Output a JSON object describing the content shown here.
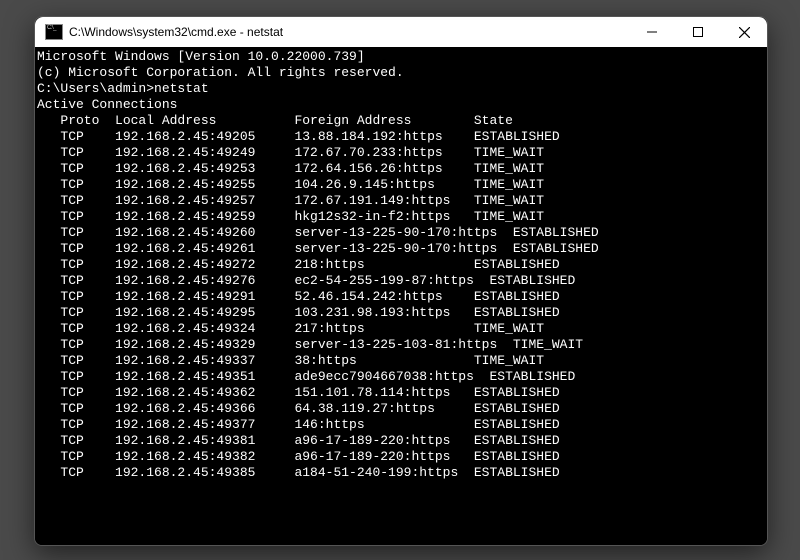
{
  "window": {
    "title": "C:\\Windows\\system32\\cmd.exe - netstat"
  },
  "header": {
    "version_line": "Microsoft Windows [Version 10.0.22000.739]",
    "copyright_line": "(c) Microsoft Corporation. All rights reserved."
  },
  "prompt": {
    "path": "C:\\Users\\admin>",
    "command": "netstat"
  },
  "section": {
    "title": "Active Connections",
    "col_proto": "Proto",
    "col_local": "Local Address",
    "col_foreign": "Foreign Address",
    "col_state": "State"
  },
  "layout": {
    "pad_proto": 3,
    "width_proto": 7,
    "width_local": 23,
    "width_foreign": 23,
    "header_pad_proto": 3,
    "header_width_proto": 7,
    "header_width_local": 23,
    "header_width_foreign": 23
  },
  "colors": {
    "window_bg": "#000000",
    "text": "#ffffff",
    "titlebar_bg": "#ffffff",
    "titlebar_text": "#000000",
    "desktop_bg": "#4a4a4a"
  },
  "connections": [
    {
      "proto": "TCP",
      "local": "192.168.2.45:49205",
      "foreign": "13.88.184.192:https",
      "state": "ESTABLISHED"
    },
    {
      "proto": "TCP",
      "local": "192.168.2.45:49249",
      "foreign": "172.67.70.233:https",
      "state": "TIME_WAIT"
    },
    {
      "proto": "TCP",
      "local": "192.168.2.45:49253",
      "foreign": "172.64.156.26:https",
      "state": "TIME_WAIT"
    },
    {
      "proto": "TCP",
      "local": "192.168.2.45:49255",
      "foreign": "104.26.9.145:https",
      "state": "TIME_WAIT"
    },
    {
      "proto": "TCP",
      "local": "192.168.2.45:49257",
      "foreign": "172.67.191.149:https",
      "state": "TIME_WAIT"
    },
    {
      "proto": "TCP",
      "local": "192.168.2.45:49259",
      "foreign": "hkg12s32-in-f2:https",
      "state": "TIME_WAIT"
    },
    {
      "proto": "TCP",
      "local": "192.168.2.45:49260",
      "foreign": "server-13-225-90-170:https",
      "state": "ESTABLISHED"
    },
    {
      "proto": "TCP",
      "local": "192.168.2.45:49261",
      "foreign": "server-13-225-90-170:https",
      "state": "ESTABLISHED"
    },
    {
      "proto": "TCP",
      "local": "192.168.2.45:49272",
      "foreign": "218:https",
      "state": "ESTABLISHED"
    },
    {
      "proto": "TCP",
      "local": "192.168.2.45:49276",
      "foreign": "ec2-54-255-199-87:https",
      "state": "ESTABLISHED"
    },
    {
      "proto": "TCP",
      "local": "192.168.2.45:49291",
      "foreign": "52.46.154.242:https",
      "state": "ESTABLISHED"
    },
    {
      "proto": "TCP",
      "local": "192.168.2.45:49295",
      "foreign": "103.231.98.193:https",
      "state": "ESTABLISHED"
    },
    {
      "proto": "TCP",
      "local": "192.168.2.45:49324",
      "foreign": "217:https",
      "state": "TIME_WAIT"
    },
    {
      "proto": "TCP",
      "local": "192.168.2.45:49329",
      "foreign": "server-13-225-103-81:https",
      "state": "TIME_WAIT"
    },
    {
      "proto": "TCP",
      "local": "192.168.2.45:49337",
      "foreign": "38:https",
      "state": "TIME_WAIT"
    },
    {
      "proto": "TCP",
      "local": "192.168.2.45:49351",
      "foreign": "ade9ecc7904667038:https",
      "state": "ESTABLISHED"
    },
    {
      "proto": "TCP",
      "local": "192.168.2.45:49362",
      "foreign": "151.101.78.114:https",
      "state": "ESTABLISHED"
    },
    {
      "proto": "TCP",
      "local": "192.168.2.45:49366",
      "foreign": "64.38.119.27:https",
      "state": "ESTABLISHED"
    },
    {
      "proto": "TCP",
      "local": "192.168.2.45:49377",
      "foreign": "146:https",
      "state": "ESTABLISHED"
    },
    {
      "proto": "TCP",
      "local": "192.168.2.45:49381",
      "foreign": "a96-17-189-220:https",
      "state": "ESTABLISHED"
    },
    {
      "proto": "TCP",
      "local": "192.168.2.45:49382",
      "foreign": "a96-17-189-220:https",
      "state": "ESTABLISHED"
    },
    {
      "proto": "TCP",
      "local": "192.168.2.45:49385",
      "foreign": "a184-51-240-199:https",
      "state": "ESTABLISHED"
    }
  ]
}
